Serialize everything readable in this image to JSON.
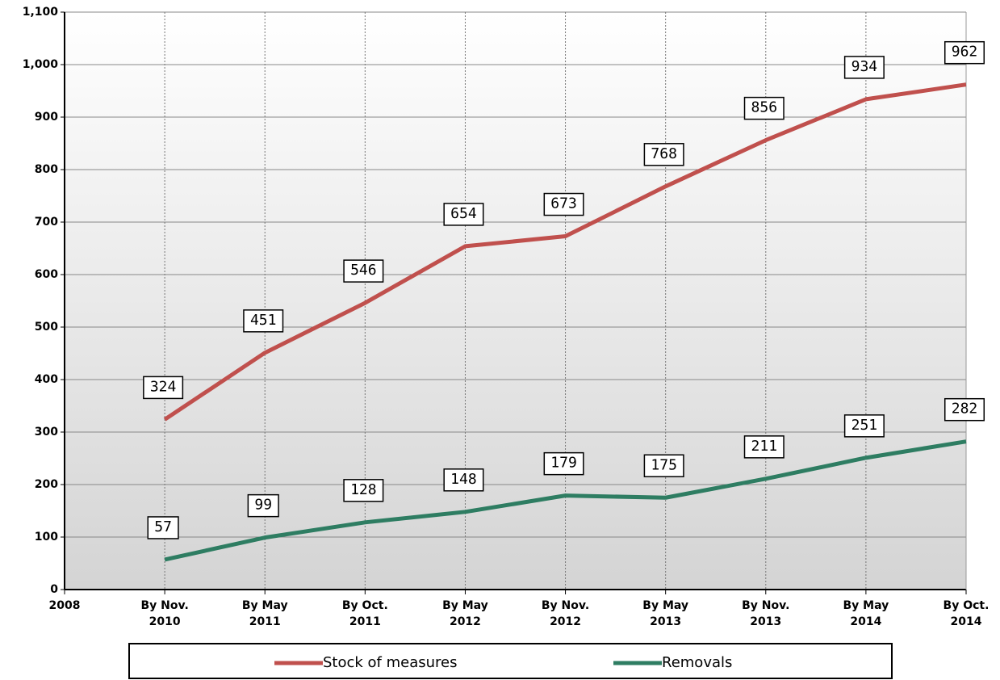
{
  "chart_data": {
    "type": "line",
    "categories": [
      "2008",
      "By Nov. 2010",
      "By May 2011",
      "By Oct. 2011",
      "By May 2012",
      "By Nov. 2012",
      "By May 2013",
      "By Nov. 2013",
      "By May 2014",
      "By Oct. 2014"
    ],
    "series": [
      {
        "name": "Stock of measures",
        "color": "#c0504d",
        "values": [
          null,
          324,
          451,
          546,
          654,
          673,
          768,
          856,
          934,
          962
        ]
      },
      {
        "name": "Removals",
        "color": "#2e7d62",
        "values": [
          null,
          57,
          99,
          128,
          148,
          179,
          175,
          211,
          251,
          282
        ]
      }
    ],
    "ylim": [
      0,
      1100
    ],
    "yticks": [
      0,
      100,
      200,
      300,
      400,
      500,
      600,
      700,
      800,
      900,
      {
        "value": 1000,
        "label": "1,000"
      },
      {
        "value": 1100,
        "label": "1,100"
      }
    ],
    "grid": true,
    "legend": "bottom"
  }
}
